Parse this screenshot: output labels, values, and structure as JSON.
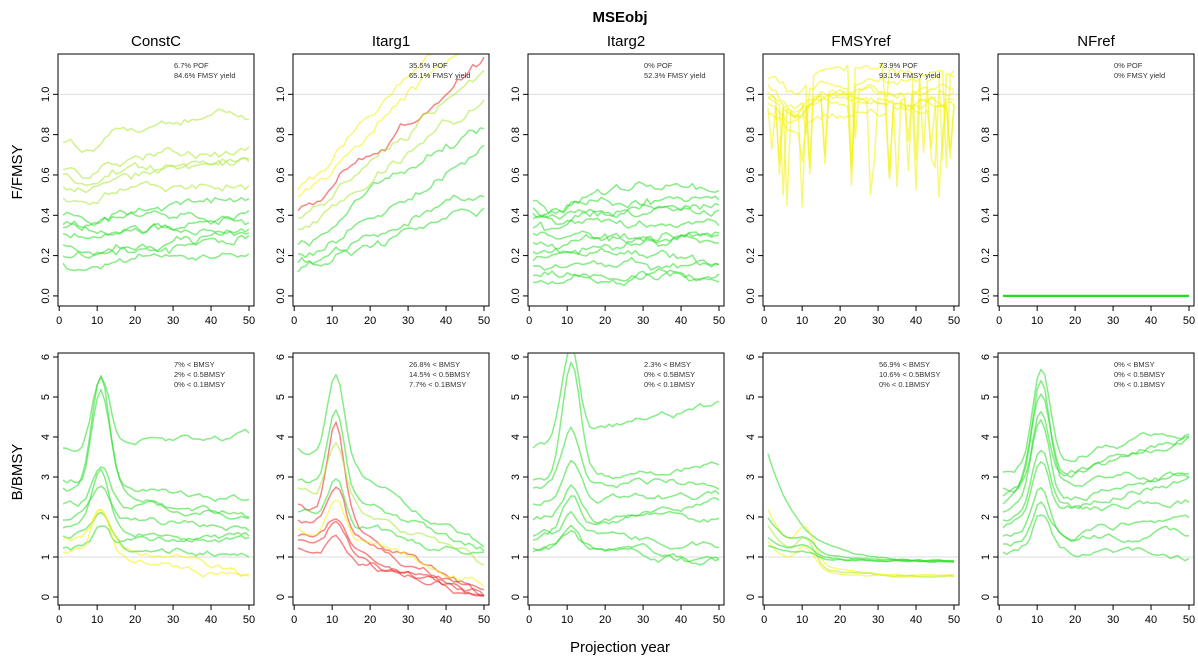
{
  "figure": {
    "title": "MSEobj",
    "xlabel": "Projection year"
  },
  "chart_data": {
    "type": "line",
    "title": "MSEobj",
    "xlabel": "Projection year",
    "x_range": [
      1,
      50
    ],
    "x_ticks": [
      0,
      10,
      20,
      30,
      40,
      50
    ],
    "rows": [
      {
        "ylabel": "F/FMSY",
        "ylim": [
          -0.05,
          1.2
        ],
        "y_ticks": [
          0.0,
          0.2,
          0.4,
          0.6,
          0.8,
          1.0
        ],
        "ref_line": 1.0
      },
      {
        "ylabel": "B/BMSY",
        "ylim": [
          -0.2,
          6.1
        ],
        "y_ticks": [
          0,
          1,
          2,
          3,
          4,
          5,
          6
        ],
        "ref_line": 1.0
      }
    ],
    "colors": {
      "green": "#22dd22",
      "yellow": "#f2f20a",
      "red": "#ee2222",
      "yellowgreen": "#a8e830",
      "refline": "#dddddd"
    },
    "panels": [
      {
        "method": "ConstC",
        "row": "F/FMSY",
        "annotations": [
          "6.7% POF",
          "84.6% FMSY yield"
        ],
        "series": [
          {
            "level": 0.78,
            "color": "yellowgreen",
            "trend": 0.14
          },
          {
            "level": 0.65,
            "color": "yellowgreen",
            "trend": 0.08
          },
          {
            "level": 0.55,
            "color": "yellowgreen",
            "trend": 0.16
          },
          {
            "level": 0.5,
            "color": "yellowgreen",
            "trend": 0.06
          },
          {
            "level": 0.42,
            "color": "green",
            "trend": 0.05
          },
          {
            "level": 0.38,
            "color": "green",
            "trend": 0.04
          },
          {
            "level": 0.32,
            "color": "green",
            "trend": 0.06
          },
          {
            "level": 0.27,
            "color": "green",
            "trend": 0.02
          },
          {
            "level": 0.22,
            "color": "green",
            "trend": 0.05
          },
          {
            "level": 0.17,
            "color": "green",
            "trend": 0.04
          },
          {
            "level": 0.62,
            "color": "yellowgreen",
            "trend": 0.02
          },
          {
            "level": 0.36,
            "color": "green",
            "trend": 0.0
          }
        ]
      },
      {
        "method": "Itarg1",
        "row": "F/FMSY",
        "annotations": [
          "35.5% POF",
          "65.1% FMSY yield"
        ],
        "series": [
          {
            "level": 0.55,
            "color": "yellow",
            "trend": 0.9
          },
          {
            "level": 0.45,
            "color": "red",
            "trend": 0.75
          },
          {
            "level": 0.4,
            "color": "yellowgreen",
            "trend": 0.7
          },
          {
            "level": 0.35,
            "color": "yellowgreen",
            "trend": 0.6
          },
          {
            "level": 0.28,
            "color": "green",
            "trend": 0.55
          },
          {
            "level": 0.22,
            "color": "green",
            "trend": 0.45
          },
          {
            "level": 0.18,
            "color": "green",
            "trend": 0.35
          },
          {
            "level": 0.14,
            "color": "green",
            "trend": 0.3
          },
          {
            "level": 0.5,
            "color": "yellow",
            "trend": 0.85
          }
        ]
      },
      {
        "method": "Itarg2",
        "row": "F/FMSY",
        "annotations": [
          "0% POF",
          "52.3% FMSY yield"
        ],
        "series": [
          {
            "level": 0.5,
            "color": "green",
            "trend": 0.02
          },
          {
            "level": 0.45,
            "color": "green",
            "trend": 0.05
          },
          {
            "level": 0.4,
            "color": "green",
            "trend": 0.04
          },
          {
            "level": 0.36,
            "color": "green",
            "trend": 0.0
          },
          {
            "level": 0.32,
            "color": "green",
            "trend": -0.02
          },
          {
            "level": 0.28,
            "color": "green",
            "trend": 0.02
          },
          {
            "level": 0.24,
            "color": "green",
            "trend": 0.0
          },
          {
            "level": 0.2,
            "color": "green",
            "trend": -0.03
          },
          {
            "level": 0.16,
            "color": "green",
            "trend": -0.02
          },
          {
            "level": 0.12,
            "color": "green",
            "trend": -0.03
          },
          {
            "level": 0.09,
            "color": "green",
            "trend": -0.01
          },
          {
            "level": 0.42,
            "color": "green",
            "trend": 0.06
          }
        ]
      },
      {
        "method": "FMSYref",
        "row": "F/FMSY",
        "annotations": [
          "73.9% POF",
          "93.1% FMSY yield"
        ],
        "series": [
          {
            "level": 1.0,
            "color": "yellow",
            "trend": 0.0
          },
          {
            "level": 1.03,
            "color": "yellow",
            "trend": 0.0
          },
          {
            "level": 0.98,
            "color": "yellow",
            "trend": 0.0
          },
          {
            "level": 1.06,
            "color": "yellow",
            "trend": 0.0
          },
          {
            "level": 0.95,
            "color": "yellow",
            "trend": 0.0
          },
          {
            "level": 1.1,
            "color": "yellow",
            "trend": 0.0
          },
          {
            "level": 1.01,
            "color": "yellow",
            "trend": 0.0
          },
          {
            "level": 0.92,
            "color": "yellow",
            "trend": 0.0
          }
        ]
      },
      {
        "method": "NFref",
        "row": "F/FMSY",
        "annotations": [
          "0% POF",
          "0% FMSY yield"
        ],
        "series": [
          {
            "level": 0.0,
            "color": "green",
            "trend": 0.0,
            "flat": true
          }
        ]
      },
      {
        "method": "ConstC",
        "row": "B/BMSY",
        "annotations": [
          "7% < BMSY",
          "2% < 0.5BMSY",
          "0% < 0.1BMSY"
        ],
        "series": [
          {
            "level": 3.8,
            "color": "green",
            "trend": 0.2,
            "peak": 1.8
          },
          {
            "level": 3.0,
            "color": "green",
            "trend": -0.6,
            "peak": 2.4
          },
          {
            "level": 2.4,
            "color": "green",
            "trend": -0.4,
            "peak": 1.0
          },
          {
            "level": 2.0,
            "color": "green",
            "trend": -0.3,
            "peak": 0.8
          },
          {
            "level": 1.6,
            "color": "green",
            "trend": -0.2,
            "peak": 0.6
          },
          {
            "level": 1.5,
            "color": "yellow",
            "trend": -1.0,
            "peak": 0.8
          },
          {
            "level": 1.3,
            "color": "green",
            "trend": -0.2,
            "peak": 0.5
          },
          {
            "level": 1.2,
            "color": "yellow",
            "trend": -0.7,
            "peak": 1.2
          },
          {
            "level": 2.8,
            "color": "green",
            "trend": -0.8,
            "peak": 2.9
          },
          {
            "level": 1.8,
            "color": "green",
            "trend": -0.3,
            "peak": 1.5
          }
        ]
      },
      {
        "method": "Itarg1",
        "row": "B/BMSY",
        "annotations": [
          "26.8% < BMSY",
          "14.5% < 0.5BMSY",
          "7.7% < 0.1BMSY"
        ],
        "series": [
          {
            "level": 3.8,
            "color": "green",
            "trend": -2.6,
            "peak": 2.2
          },
          {
            "level": 3.0,
            "color": "green",
            "trend": -1.8,
            "peak": 2.0
          },
          {
            "level": 2.4,
            "color": "red",
            "trend": -2.3,
            "peak": 2.4
          },
          {
            "level": 2.0,
            "color": "red",
            "trend": -1.9,
            "peak": 1.2
          },
          {
            "level": 1.6,
            "color": "red",
            "trend": -1.6,
            "peak": 0.6
          },
          {
            "level": 1.5,
            "color": "red",
            "trend": -1.5,
            "peak": 0.7
          },
          {
            "level": 1.3,
            "color": "red",
            "trend": -1.3,
            "peak": 0.5
          },
          {
            "level": 1.8,
            "color": "yellow",
            "trend": -1.4,
            "peak": 0.9
          },
          {
            "level": 2.2,
            "color": "green",
            "trend": -1.2,
            "peak": 1.0
          },
          {
            "level": 2.8,
            "color": "yellowgreen",
            "trend": -2.0,
            "peak": 1.6
          }
        ]
      },
      {
        "method": "Itarg2",
        "row": "B/BMSY",
        "annotations": [
          "2.3% < BMSY",
          "0% < 0.5BMSY",
          "0% < 0.1BMSY"
        ],
        "series": [
          {
            "level": 3.8,
            "color": "green",
            "trend": 1.0,
            "peak": 2.2
          },
          {
            "level": 3.0,
            "color": "green",
            "trend": 0.2,
            "peak": 2.8
          },
          {
            "level": 2.4,
            "color": "green",
            "trend": 0.1,
            "peak": 1.0
          },
          {
            "level": 2.0,
            "color": "green",
            "trend": -0.1,
            "peak": 0.8
          },
          {
            "level": 1.6,
            "color": "green",
            "trend": -0.3,
            "peak": 0.5
          },
          {
            "level": 1.5,
            "color": "green",
            "trend": 0.9,
            "peak": 0.8
          },
          {
            "level": 1.3,
            "color": "green",
            "trend": -0.4,
            "peak": 0.4
          },
          {
            "level": 1.2,
            "color": "green",
            "trend": -0.3,
            "peak": 0.6
          },
          {
            "level": 2.8,
            "color": "green",
            "trend": 0.0,
            "peak": 1.4
          }
        ]
      },
      {
        "method": "FMSYref",
        "row": "B/BMSY",
        "annotations": [
          "56.9% < BMSY",
          "10.6% < 0.5BMSY",
          "0% < 0.1BMSY"
        ],
        "series": [
          {
            "level": 3.6,
            "color": "green",
            "trend": -2.7,
            "peak": 0.0,
            "decay": true
          },
          {
            "level": 2.2,
            "color": "yellow",
            "trend": -1.7,
            "peak": 0.8,
            "decay": true
          },
          {
            "level": 2.0,
            "color": "green",
            "trend": -1.1,
            "peak": 0.3,
            "decay": true
          },
          {
            "level": 1.8,
            "color": "yellowgreen",
            "trend": -1.3,
            "peak": 0.6,
            "decay": true
          },
          {
            "level": 1.5,
            "color": "green",
            "trend": -0.6,
            "peak": 0.2,
            "decay": true
          },
          {
            "level": 1.4,
            "color": "yellow",
            "trend": -0.9,
            "peak": 0.5,
            "decay": true
          },
          {
            "level": 1.3,
            "color": "green",
            "trend": -0.4,
            "peak": 0.1,
            "decay": true
          }
        ]
      },
      {
        "method": "NFref",
        "row": "B/BMSY",
        "annotations": [
          "0% < BMSY",
          "0% < 0.5BMSY",
          "0% < 0.1BMSY"
        ],
        "series": [
          {
            "level": 3.2,
            "color": "green",
            "trend": 1.0,
            "peak": 2.4
          },
          {
            "level": 2.8,
            "color": "green",
            "trend": 0.3,
            "peak": 2.6
          },
          {
            "level": 2.4,
            "color": "green",
            "trend": 1.6,
            "peak": 1.8
          },
          {
            "level": 2.2,
            "color": "green",
            "trend": 0.8,
            "peak": 2.0
          },
          {
            "level": 2.0,
            "color": "green",
            "trend": 0.4,
            "peak": 1.6
          },
          {
            "level": 1.8,
            "color": "green",
            "trend": 1.2,
            "peak": 1.4
          },
          {
            "level": 1.6,
            "color": "green",
            "trend": 0.0,
            "peak": 1.2
          },
          {
            "level": 1.4,
            "color": "green",
            "trend": 0.6,
            "peak": 1.0
          },
          {
            "level": 1.2,
            "color": "green",
            "trend": -0.2,
            "peak": 0.9
          },
          {
            "level": 2.6,
            "color": "green",
            "trend": 1.4,
            "peak": 2.2
          }
        ]
      }
    ]
  }
}
